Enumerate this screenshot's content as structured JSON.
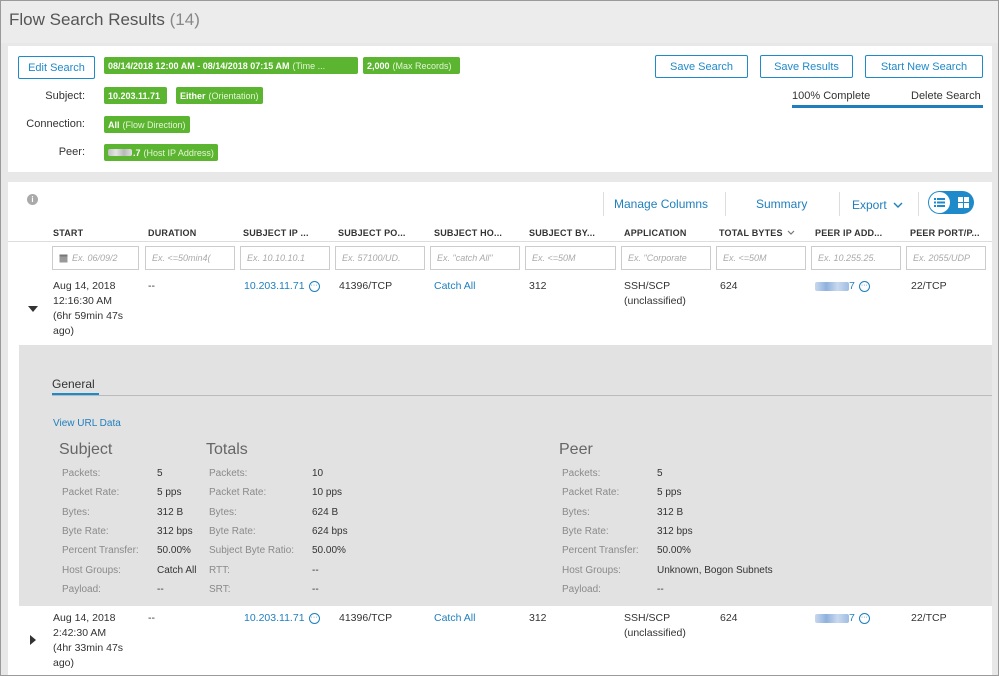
{
  "header": {
    "title": "Flow Search Results",
    "count": "(14)"
  },
  "search": {
    "edit_label": "Edit Search",
    "time_tag": {
      "value": "08/14/2018 12:00 AM - 08/14/2018 07:15 AM",
      "note": "(Time ..."
    },
    "max_tag": {
      "value": "2,000",
      "note": "(Max Records)"
    },
    "subject_label": "Subject:",
    "subject_ip_tag": "10.203.11.71",
    "subject_orient_tag": {
      "value": "Either",
      "note": "(Orientation)"
    },
    "connection_label": "Connection:",
    "connection_tag": {
      "value": "All",
      "note": "(Flow Direction)"
    },
    "peer_label": "Peer:",
    "peer_tag": {
      "value": ".7",
      "note": "(Host IP Address)"
    },
    "save_search_label": "Save Search",
    "save_results_label": "Save Results",
    "start_new_label": "Start New Search",
    "progress_text": "100% Complete",
    "progress_value": 1.0,
    "delete_label": "Delete Search"
  },
  "toolbar": {
    "manage_columns": "Manage Columns",
    "summary": "Summary",
    "export": "Export"
  },
  "columns": [
    {
      "head": "START",
      "placeholder": "Ex. 06/09/2"
    },
    {
      "head": "DURATION",
      "placeholder": "Ex. <=50min4("
    },
    {
      "head": "SUBJECT IP ...",
      "placeholder": "Ex. 10.10.10.1"
    },
    {
      "head": "SUBJECT PO...",
      "placeholder": "Ex. 57100/UD."
    },
    {
      "head": "SUBJECT HO...",
      "placeholder": "Ex. \"catch All\""
    },
    {
      "head": "SUBJECT BY...",
      "placeholder": "Ex. <=50M"
    },
    {
      "head": "APPLICATION",
      "placeholder": "Ex. \"Corporate"
    },
    {
      "head": "TOTAL BYTES",
      "placeholder": "Ex. <=50M"
    },
    {
      "head": "PEER IP ADD...",
      "placeholder": "Ex. 10.255.25."
    },
    {
      "head": "PEER PORT/P...",
      "placeholder": "Ex. 2055/UDP"
    }
  ],
  "rows": [
    {
      "start_date": "Aug 14, 2018",
      "start_time": "12:16:30 AM",
      "start_ago1": "(6hr 59min 47s",
      "start_ago2": "ago)",
      "duration": "--",
      "subject_ip": "10.203.11.71",
      "subject_port": "41396/TCP",
      "subject_host": "Catch All",
      "subject_bytes": "312",
      "app1": "SSH/SCP",
      "app2": "(unclassified)",
      "total_bytes": "624",
      "peer_ip_suffix": "7",
      "peer_port": "22/TCP"
    },
    {
      "start_date": "Aug 14, 2018",
      "start_time": "2:42:30 AM",
      "start_ago1": "(4hr 33min 47s",
      "start_ago2": "ago)",
      "duration": "--",
      "subject_ip": "10.203.11.71",
      "subject_port": "41396/TCP",
      "subject_host": "Catch All",
      "subject_bytes": "312",
      "app1": "SSH/SCP",
      "app2": "(unclassified)",
      "total_bytes": "624",
      "peer_ip_suffix": "7",
      "peer_port": "22/TCP"
    }
  ],
  "detail": {
    "tab": "General",
    "view_url": "View URL Data",
    "subject": {
      "title": "Subject",
      "labels": [
        "Packets:",
        "Packet Rate:",
        "Bytes:",
        "Byte Rate:",
        "Percent Transfer:",
        "Host Groups:",
        "Payload:"
      ],
      "values": [
        "5",
        "5 pps",
        "312 B",
        "312 bps",
        "50.00%",
        "Catch All",
        "--"
      ]
    },
    "totals": {
      "title": "Totals",
      "labels": [
        "Packets:",
        "Packet Rate:",
        "Bytes:",
        "Byte Rate:",
        "Subject Byte Ratio:",
        "RTT:",
        "SRT:"
      ],
      "values": [
        "10",
        "10 pps",
        "624 B",
        "624 bps",
        "50.00%",
        "--",
        "--"
      ]
    },
    "peer": {
      "title": "Peer",
      "labels": [
        "Packets:",
        "Packet Rate:",
        "Bytes:",
        "Byte Rate:",
        "Percent Transfer:",
        "Host Groups:",
        "Payload:"
      ],
      "values": [
        "5",
        "5 pps",
        "312 B",
        "312 bps",
        "50.00%",
        "Unknown, Bogon Subnets",
        "--"
      ]
    }
  },
  "colors": {
    "accent": "#1f8ac9",
    "tag_green": "#5cb530",
    "detail_bg": "#e2e2e2"
  }
}
